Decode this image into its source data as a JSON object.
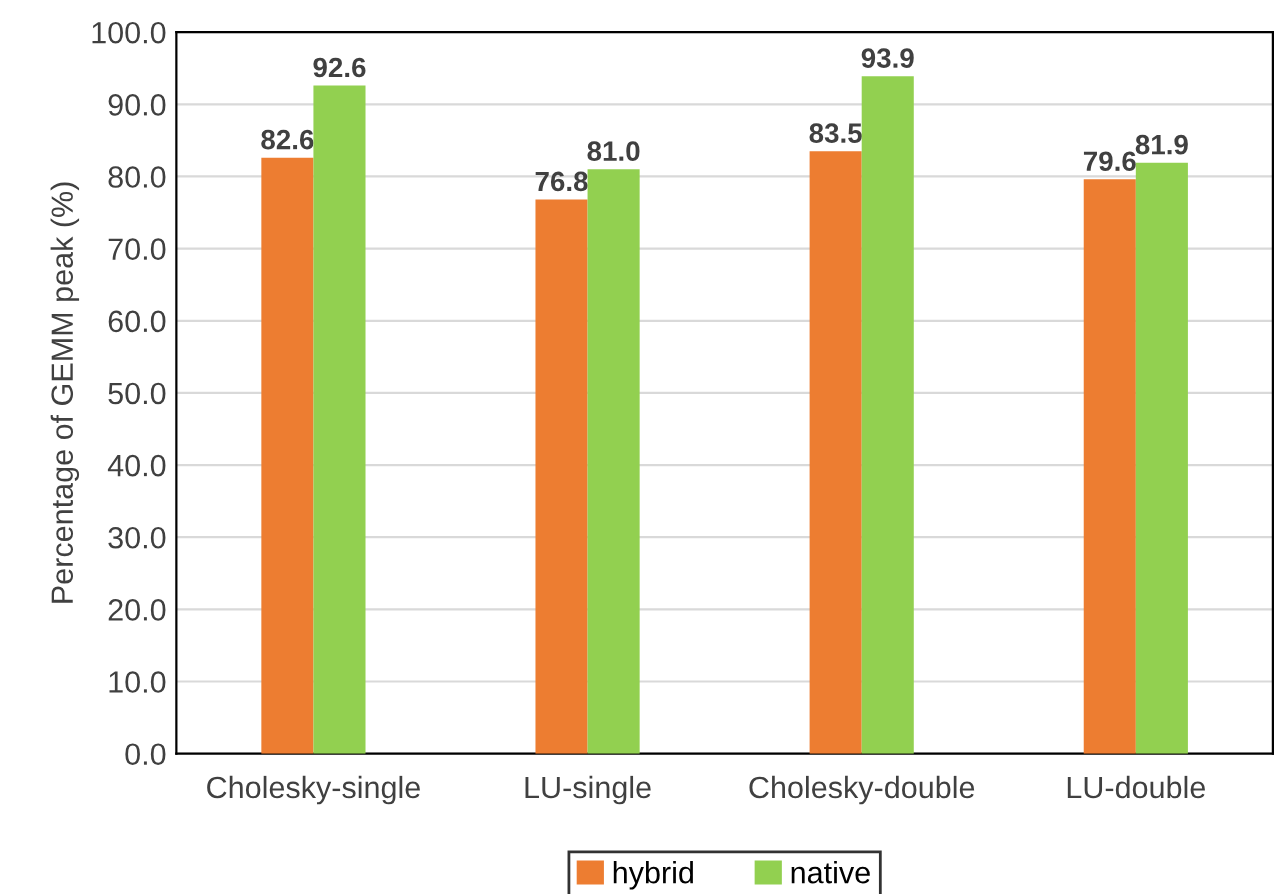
{
  "chart_data": {
    "type": "bar",
    "ylabel": "Percentage of GEMM peak (%)",
    "categories": [
      "Cholesky-single",
      "LU-single",
      "Cholesky-double",
      "LU-double"
    ],
    "series": [
      {
        "name": "hybrid",
        "color": "#ed7d31",
        "values": [
          82.6,
          76.8,
          83.5,
          79.6
        ],
        "value_labels": [
          "82.6",
          "76.8",
          "83.5",
          "79.6"
        ]
      },
      {
        "name": "native",
        "color": "#92d050",
        "values": [
          92.6,
          81.0,
          93.9,
          81.9
        ],
        "value_labels": [
          "92.6",
          "81.0",
          "93.9",
          "81.9"
        ]
      }
    ],
    "ylim": [
      0,
      100
    ],
    "yticks": [
      {
        "value": 0,
        "label": "0.0"
      },
      {
        "value": 10,
        "label": "10.0"
      },
      {
        "value": 20,
        "label": "20.0"
      },
      {
        "value": 30,
        "label": "30.0"
      },
      {
        "value": 40,
        "label": "40.0"
      },
      {
        "value": 50,
        "label": "50.0"
      },
      {
        "value": 60,
        "label": "60.0"
      },
      {
        "value": 70,
        "label": "70.0"
      },
      {
        "value": 80,
        "label": "80.0"
      },
      {
        "value": 90,
        "label": "90.0"
      },
      {
        "value": 100,
        "label": "100.0"
      }
    ],
    "grid": "y",
    "legend": "bottom"
  }
}
